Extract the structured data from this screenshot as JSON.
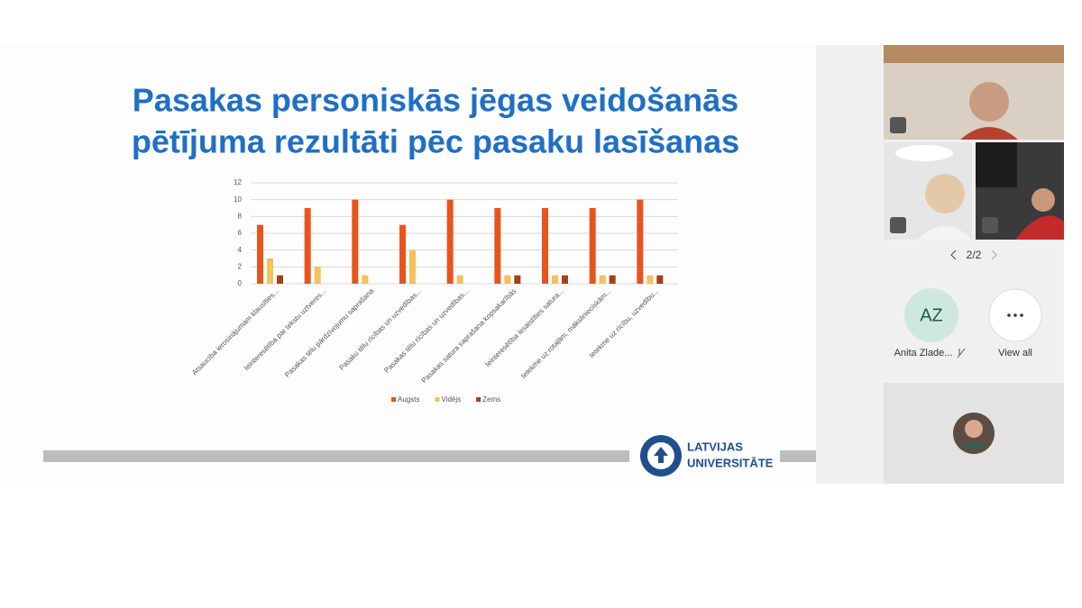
{
  "slide": {
    "title_lines": [
      "Pasakas personiskās jēgas veidošanās",
      "pētījuma rezultāti pēc pasaku lasīšanas"
    ],
    "logo_lines": [
      "LATVIJAS",
      "UNIVERSITĀTE"
    ]
  },
  "chart_data": {
    "type": "bar",
    "categories": [
      "Atsaucība ierosinājumam klausīties...",
      "Ieinteresētība par tekstu uztveres...",
      "Pasakas tēlu pārdzīvojumu saprašana",
      "Pasaku tēlu rīcības un uzvedības...",
      "Pasakas tēlu rīcības un uzvedības...",
      "Pasakas satura saprašana kopsakarībās",
      "Ieinteresētība iesaistīties satura...",
      "Ietekme uz rotaļām, mākslinieciskām...",
      "Ietekme uz rīcību, uzvedību..."
    ],
    "series": [
      {
        "name": "Augsts",
        "color": "#e8541e",
        "values": [
          7,
          9,
          10,
          7,
          10,
          9,
          9,
          9,
          10
        ]
      },
      {
        "name": "Vidējs",
        "color": "#f6c05c",
        "values": [
          3,
          2,
          1,
          4,
          1,
          1,
          1,
          1,
          1
        ]
      },
      {
        "name": "Zems",
        "color": "#a5401a",
        "values": [
          1,
          0,
          0,
          0,
          0,
          1,
          1,
          1,
          1
        ]
      }
    ],
    "ylim": [
      0,
      12
    ],
    "yticks": [
      0,
      2,
      4,
      6,
      8,
      10,
      12
    ],
    "grid": true,
    "legend": "bottom"
  },
  "meeting": {
    "pagination": "2/2",
    "participant_initials": "AZ",
    "participant_name": "Anita Zlade...",
    "view_all": "View all"
  }
}
